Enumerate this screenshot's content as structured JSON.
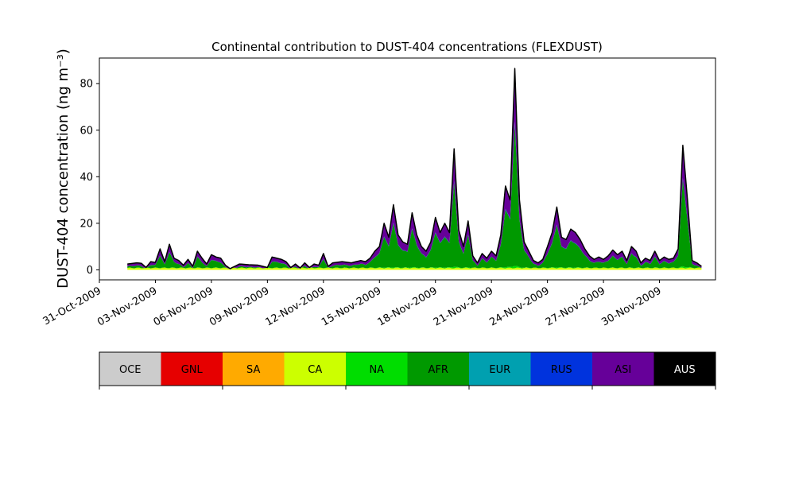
{
  "chart_data": {
    "type": "area",
    "stacked": true,
    "title": "Continental contribution to DUST-404 concentrations (FLEXDUST)",
    "ylabel": "DUST-404 concentration (ng m⁻³)",
    "xlabel": "",
    "x_range": [
      "2009-10-31",
      "2009-12-03"
    ],
    "ylim": [
      -4.3,
      91
    ],
    "yticks": [
      0,
      20,
      40,
      60,
      80
    ],
    "xticks": [
      "31-Oct-2009",
      "03-Nov-2009",
      "06-Nov-2009",
      "09-Nov-2009",
      "12-Nov-2009",
      "15-Nov-2009",
      "18-Nov-2009",
      "21-Nov-2009",
      "24-Nov-2009",
      "27-Nov-2009",
      "30-Nov-2009"
    ],
    "grid": false,
    "legend": "colorbar below the plot",
    "series_order": [
      "OCE",
      "GNL",
      "SA",
      "CA",
      "NA",
      "AFR",
      "EUR",
      "RUS",
      "ASI",
      "AUS"
    ],
    "colors": {
      "OCE": "#cccccc",
      "GNL": "#e60000",
      "SA": "#ffaa00",
      "CA": "#ccff00",
      "NA": "#00dd00",
      "AFR": "#009900",
      "EUR": "#00a0b0",
      "RUS": "#0033dd",
      "ASI": "#660099",
      "AUS": "#000000"
    },
    "keypoints": [
      [
        "2009-11-01T12:00",
        2.5
      ],
      [
        "2009-11-02T00:00",
        3.0
      ],
      [
        "2009-11-02T06:00",
        2.8
      ],
      [
        "2009-11-02T12:00",
        1.0
      ],
      [
        "2009-11-02T18:00",
        3.5
      ],
      [
        "2009-11-03T00:00",
        3.2
      ],
      [
        "2009-11-03T06:00",
        9.0
      ],
      [
        "2009-11-03T12:00",
        3.5
      ],
      [
        "2009-11-03T18:00",
        11.0
      ],
      [
        "2009-11-04T00:00",
        5.0
      ],
      [
        "2009-11-04T06:00",
        4.0
      ],
      [
        "2009-11-04T12:00",
        2.0
      ],
      [
        "2009-11-04T18:00",
        4.5
      ],
      [
        "2009-11-05T00:00",
        1.5
      ],
      [
        "2009-11-05T06:00",
        8.0
      ],
      [
        "2009-11-05T12:00",
        5.0
      ],
      [
        "2009-11-05T18:00",
        2.5
      ],
      [
        "2009-11-06T00:00",
        6.5
      ],
      [
        "2009-11-06T06:00",
        5.5
      ],
      [
        "2009-11-06T12:00",
        5.0
      ],
      [
        "2009-11-06T18:00",
        2.0
      ],
      [
        "2009-11-07T00:00",
        0.5
      ],
      [
        "2009-11-07T12:00",
        2.5
      ],
      [
        "2009-11-08T00:00",
        2.2
      ],
      [
        "2009-11-08T12:00",
        2.0
      ],
      [
        "2009-11-09T00:00",
        1.0
      ],
      [
        "2009-11-09T06:00",
        5.5
      ],
      [
        "2009-11-09T12:00",
        5.0
      ],
      [
        "2009-11-09T18:00",
        4.5
      ],
      [
        "2009-11-10T00:00",
        3.5
      ],
      [
        "2009-11-10T06:00",
        1.0
      ],
      [
        "2009-11-10T12:00",
        2.5
      ],
      [
        "2009-11-10T18:00",
        0.8
      ],
      [
        "2009-11-11T00:00",
        3.0
      ],
      [
        "2009-11-11T06:00",
        1.0
      ],
      [
        "2009-11-11T12:00",
        2.5
      ],
      [
        "2009-11-11T18:00",
        2.0
      ],
      [
        "2009-11-12T00:00",
        7.0
      ],
      [
        "2009-11-12T06:00",
        1.5
      ],
      [
        "2009-11-12T12:00",
        3.0
      ],
      [
        "2009-11-13T00:00",
        3.5
      ],
      [
        "2009-11-13T12:00",
        3.0
      ],
      [
        "2009-11-14T00:00",
        4.0
      ],
      [
        "2009-11-14T06:00",
        3.5
      ],
      [
        "2009-11-14T12:00",
        5.0
      ],
      [
        "2009-11-14T18:00",
        8.0
      ],
      [
        "2009-11-15T00:00",
        10.0
      ],
      [
        "2009-11-15T06:00",
        20.0
      ],
      [
        "2009-11-15T12:00",
        14.0
      ],
      [
        "2009-11-15T18:00",
        28.0
      ],
      [
        "2009-11-16T00:00",
        15.0
      ],
      [
        "2009-11-16T06:00",
        12.0
      ],
      [
        "2009-11-16T12:00",
        11.0
      ],
      [
        "2009-11-16T18:00",
        24.5
      ],
      [
        "2009-11-17T00:00",
        15.0
      ],
      [
        "2009-11-17T06:00",
        10.0
      ],
      [
        "2009-11-17T12:00",
        8.0
      ],
      [
        "2009-11-17T18:00",
        12.0
      ],
      [
        "2009-11-18T00:00",
        22.5
      ],
      [
        "2009-11-18T06:00",
        16.0
      ],
      [
        "2009-11-18T12:00",
        20.0
      ],
      [
        "2009-11-18T18:00",
        16.0
      ],
      [
        "2009-11-19T00:00",
        52.0
      ],
      [
        "2009-11-19T06:00",
        17.0
      ],
      [
        "2009-11-19T12:00",
        10.0
      ],
      [
        "2009-11-19T18:00",
        21.0
      ],
      [
        "2009-11-20T00:00",
        6.0
      ],
      [
        "2009-11-20T06:00",
        3.0
      ],
      [
        "2009-11-20T12:00",
        7.0
      ],
      [
        "2009-11-20T18:00",
        5.0
      ],
      [
        "2009-11-21T00:00",
        8.0
      ],
      [
        "2009-11-21T06:00",
        6.0
      ],
      [
        "2009-11-21T12:00",
        15.0
      ],
      [
        "2009-11-21T18:00",
        36.0
      ],
      [
        "2009-11-22T00:00",
        30.0
      ],
      [
        "2009-11-22T06:00",
        86.5
      ],
      [
        "2009-11-22T12:00",
        30.0
      ],
      [
        "2009-11-22T18:00",
        12.0
      ],
      [
        "2009-11-23T00:00",
        8.0
      ],
      [
        "2009-11-23T06:00",
        4.0
      ],
      [
        "2009-11-23T12:00",
        3.0
      ],
      [
        "2009-11-23T18:00",
        4.5
      ],
      [
        "2009-11-24T00:00",
        10.0
      ],
      [
        "2009-11-24T06:00",
        16.0
      ],
      [
        "2009-11-24T12:00",
        27.0
      ],
      [
        "2009-11-24T18:00",
        14.0
      ],
      [
        "2009-11-25T00:00",
        13.0
      ],
      [
        "2009-11-25T06:00",
        17.5
      ],
      [
        "2009-11-25T12:00",
        16.0
      ],
      [
        "2009-11-25T18:00",
        13.0
      ],
      [
        "2009-11-26T00:00",
        9.0
      ],
      [
        "2009-11-26T06:00",
        6.0
      ],
      [
        "2009-11-26T12:00",
        4.5
      ],
      [
        "2009-11-26T18:00",
        5.5
      ],
      [
        "2009-11-27T00:00",
        4.5
      ],
      [
        "2009-11-27T06:00",
        6.0
      ],
      [
        "2009-11-27T12:00",
        8.5
      ],
      [
        "2009-11-27T18:00",
        6.5
      ],
      [
        "2009-11-28T00:00",
        8.0
      ],
      [
        "2009-11-28T06:00",
        4.0
      ],
      [
        "2009-11-28T12:00",
        10.0
      ],
      [
        "2009-11-28T18:00",
        8.0
      ],
      [
        "2009-11-29T00:00",
        3.0
      ],
      [
        "2009-11-29T06:00",
        5.0
      ],
      [
        "2009-11-29T12:00",
        4.0
      ],
      [
        "2009-11-29T18:00",
        8.0
      ],
      [
        "2009-11-30T00:00",
        4.0
      ],
      [
        "2009-11-30T06:00",
        5.5
      ],
      [
        "2009-11-30T12:00",
        4.5
      ],
      [
        "2009-11-30T18:00",
        5.0
      ],
      [
        "2009-12-01T00:00",
        9.0
      ],
      [
        "2009-12-01T06:00",
        53.5
      ],
      [
        "2009-12-01T12:00",
        30.0
      ],
      [
        "2009-12-01T18:00",
        4.0
      ],
      [
        "2009-12-02T00:00",
        3.0
      ],
      [
        "2009-12-02T06:00",
        1.5
      ]
    ]
  }
}
